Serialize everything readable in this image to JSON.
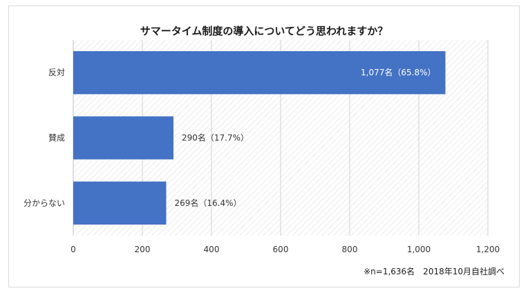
{
  "chart_data": {
    "type": "bar",
    "orientation": "horizontal",
    "title": "サマータイム制度の導入についてどう思われますか？",
    "categories": [
      "反対",
      "賛成",
      "分からない"
    ],
    "values": [
      1077,
      290,
      269
    ],
    "data_labels": [
      "1,077名（65.8%）",
      "290名（17.7%）",
      "269名（16.4%）"
    ],
    "xlim": [
      0,
      1200
    ],
    "x_ticks": [
      0,
      200,
      400,
      600,
      800,
      1000,
      1200
    ],
    "x_tick_labels": [
      "0",
      "200",
      "400",
      "600",
      "800",
      "1,000",
      "1,200"
    ],
    "grid": true,
    "bar_color": "#4472c4",
    "footnote": "※n=1,636名　2018年10月自社調べ"
  }
}
